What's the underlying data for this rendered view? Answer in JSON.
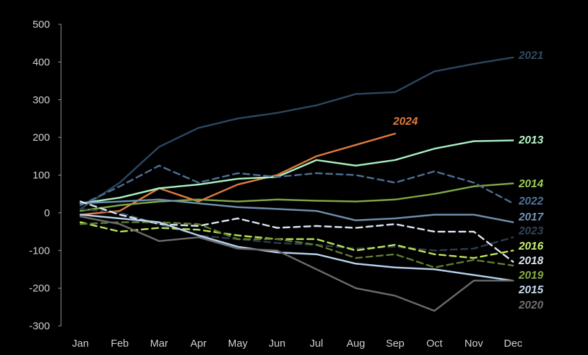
{
  "chart_data": {
    "type": "line",
    "title": "",
    "xlabel": "",
    "ylabel": "",
    "ylim": [
      -300,
      500
    ],
    "yticks": [
      500,
      400,
      300,
      200,
      100,
      0,
      -100,
      -200,
      -300
    ],
    "categories": [
      "Jan",
      "Feb",
      "Mar",
      "Apr",
      "May",
      "Jun",
      "Jul",
      "Aug",
      "Sep",
      "Oct",
      "Nov",
      "Dec"
    ],
    "grid": false,
    "legend": "inline-right",
    "series": [
      {
        "name": "2021",
        "color": "#2b4660",
        "dash": "solid",
        "label_color": "#2f4a63",
        "values": [
          10,
          80,
          175,
          225,
          250,
          265,
          285,
          315,
          320,
          375,
          395,
          412
        ]
      },
      {
        "name": "2024",
        "color": "#e07a3c",
        "dash": "solid",
        "label_color": "#e07a3c",
        "values": [
          -5,
          5,
          65,
          30,
          75,
          100,
          150,
          180,
          210,
          null,
          null,
          null
        ]
      },
      {
        "name": "2013",
        "color": "#a8f0c0",
        "dash": "solid",
        "label_color": "#b6f7c8",
        "values": [
          25,
          40,
          65,
          75,
          90,
          95,
          140,
          125,
          140,
          170,
          190,
          192
        ]
      },
      {
        "name": "2014",
        "color": "#7fa944",
        "dash": "solid",
        "label_color": "#9ccb55",
        "values": [
          5,
          20,
          30,
          35,
          30,
          35,
          32,
          30,
          35,
          50,
          70,
          78
        ]
      },
      {
        "name": "2022",
        "color": "#4d6f93",
        "dash": "dash",
        "label_color": "#4f7399",
        "values": [
          20,
          70,
          125,
          80,
          105,
          95,
          105,
          100,
          80,
          110,
          80,
          25
        ]
      },
      {
        "name": "2017",
        "color": "#6f8fb0",
        "dash": "solid",
        "label_color": "#6f92b7",
        "values": [
          25,
          30,
          35,
          25,
          15,
          10,
          5,
          -20,
          -15,
          -5,
          -5,
          -25
        ]
      },
      {
        "name": "2023",
        "color": "#2b3b4c",
        "dash": "dash",
        "label_color": "#2e4357",
        "values": [
          10,
          0,
          -30,
          -60,
          -70,
          -80,
          -85,
          -95,
          -90,
          -100,
          -95,
          -65
        ]
      },
      {
        "name": "2016",
        "color": "#b9e05a",
        "dash": "dash",
        "label_color": "#c9ed70",
        "values": [
          -25,
          -50,
          -40,
          -45,
          -60,
          -70,
          -70,
          -100,
          -85,
          -110,
          -120,
          -100
        ]
      },
      {
        "name": "2018",
        "color": "#d8e4f0",
        "dash": "dash",
        "label_color": "#d8e4f0",
        "values": [
          30,
          -5,
          -30,
          -35,
          -15,
          -40,
          -35,
          -40,
          -30,
          -50,
          -50,
          -130
        ]
      },
      {
        "name": "2019",
        "color": "#5f7a32",
        "dash": "dash",
        "label_color": "#86aa44",
        "values": [
          -30,
          -25,
          -25,
          -30,
          -70,
          -70,
          -85,
          -120,
          -110,
          -145,
          -125,
          -140
        ]
      },
      {
        "name": "2015",
        "color": "#b6d2ee",
        "dash": "solid",
        "label_color": "#c4dcf2",
        "values": [
          -5,
          -15,
          -25,
          -60,
          -90,
          -105,
          -110,
          -135,
          -145,
          -150,
          -165,
          -180
        ]
      },
      {
        "name": "2020",
        "color": "#6a6a6a",
        "dash": "solid",
        "label_color": "#6f6f6f",
        "values": [
          -10,
          -30,
          -75,
          -65,
          -95,
          -100,
          -150,
          -200,
          -220,
          -260,
          -180,
          -180
        ]
      }
    ]
  }
}
